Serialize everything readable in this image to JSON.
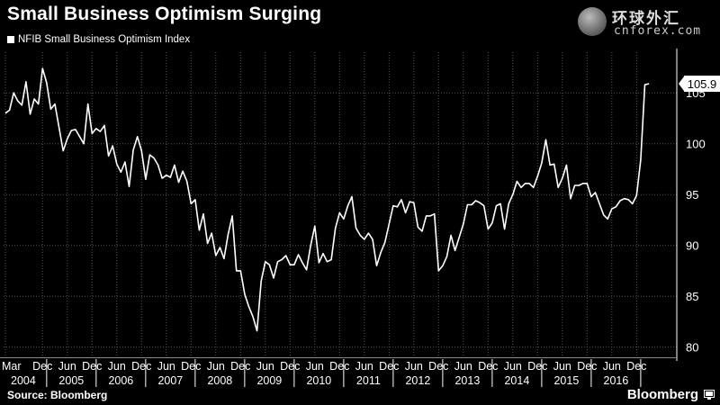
{
  "header": {
    "title": "Small Business Optimism Surging",
    "legend_label": "NFIB Small Business Optimism Index"
  },
  "watermark": {
    "chinese": "环球外汇",
    "url": "cnforex.com"
  },
  "footer": {
    "source": "Source: Bloomberg",
    "brand": "Bloomberg"
  },
  "colors": {
    "background": "#000000",
    "line": "#ffffff",
    "grid": "#555555"
  },
  "chart_data": {
    "type": "line",
    "title": "Small Business Optimism Surging",
    "series": [
      {
        "name": "NFIB Small Business Optimism Index",
        "start": "2004-03",
        "frequency": "monthly",
        "values": [
          103.0,
          103.3,
          105.0,
          104.2,
          103.8,
          106.1,
          102.9,
          104.4,
          103.9,
          107.4,
          106.0,
          103.4,
          103.9,
          101.6,
          99.3,
          100.5,
          101.3,
          101.4,
          100.7,
          100.0,
          103.9,
          101.0,
          101.5,
          101.2,
          101.8,
          98.8,
          99.8,
          98.0,
          97.2,
          98.2,
          95.8,
          99.4,
          100.7,
          99.3,
          96.5,
          98.9,
          98.6,
          97.9,
          96.6,
          96.9,
          96.7,
          97.9,
          96.2,
          97.3,
          96.3,
          94.1,
          94.5,
          91.5,
          93.1,
          90.2,
          91.2,
          89.0,
          89.8,
          88.7,
          91.1,
          92.9,
          87.5,
          87.5,
          85.2,
          84.0,
          83.0,
          81.6,
          86.5,
          88.4,
          88.1,
          86.8,
          88.4,
          88.6,
          89.0,
          88.1,
          88.1,
          89.1,
          88.3,
          87.6,
          90.0,
          91.9,
          88.3,
          89.2,
          88.4,
          88.6,
          91.7,
          93.2,
          92.6,
          93.9,
          94.8,
          91.7,
          91.0,
          90.6,
          91.2,
          90.6,
          88.0,
          89.3,
          90.3,
          92.1,
          93.9,
          93.8,
          94.5,
          93.2,
          94.3,
          94.2,
          91.8,
          91.4,
          92.9,
          92.9,
          93.1,
          87.5,
          88.0,
          88.9,
          91.0,
          89.5,
          90.8,
          92.1,
          94.0,
          94.0,
          94.4,
          94.2,
          93.9,
          91.6,
          92.2,
          93.9,
          94.1,
          91.6,
          94.1,
          95.0,
          96.3,
          95.7,
          96.1,
          96.1,
          95.7,
          96.8,
          98.1,
          100.4,
          97.9,
          98.0,
          95.7,
          96.6,
          97.9,
          94.6,
          95.9,
          95.9,
          96.1,
          96.1,
          94.8,
          95.2,
          94.1,
          93.0,
          92.6,
          93.6,
          93.8,
          94.4,
          94.6,
          94.5,
          94.1,
          94.9,
          98.4,
          105.8,
          105.9
        ]
      }
    ],
    "last_value_label": "105.9",
    "x_tick_labels": [
      "Mar",
      "Dec",
      "Jun",
      "Dec",
      "Jun",
      "Dec",
      "Jun",
      "Dec",
      "Jun",
      "Dec",
      "Jun",
      "Dec",
      "Jun",
      "Dec",
      "Jun",
      "Dec",
      "Jun",
      "Dec",
      "Jun",
      "Dec",
      "Jun",
      "Dec",
      "Jun",
      "Dec",
      "Jun",
      "Dec"
    ],
    "x_tick_months": [
      0,
      9,
      15,
      21,
      27,
      33,
      39,
      45,
      51,
      57,
      63,
      69,
      75,
      81,
      87,
      93,
      99,
      105,
      111,
      117,
      123,
      129,
      135,
      141,
      147,
      153
    ],
    "year_labels": [
      "2004",
      "2005",
      "2006",
      "2007",
      "2008",
      "2009",
      "2010",
      "2011",
      "2012",
      "2013",
      "2014",
      "2015",
      "2016"
    ],
    "y_ticks": [
      80,
      85,
      90,
      95,
      100,
      105
    ],
    "y_tick_labels": [
      "80",
      "85",
      "90",
      "95",
      "100",
      "105"
    ],
    "ylim": [
      79,
      109
    ],
    "xlabel": "",
    "ylabel": "",
    "grid": true,
    "legend_position": "top-left"
  }
}
